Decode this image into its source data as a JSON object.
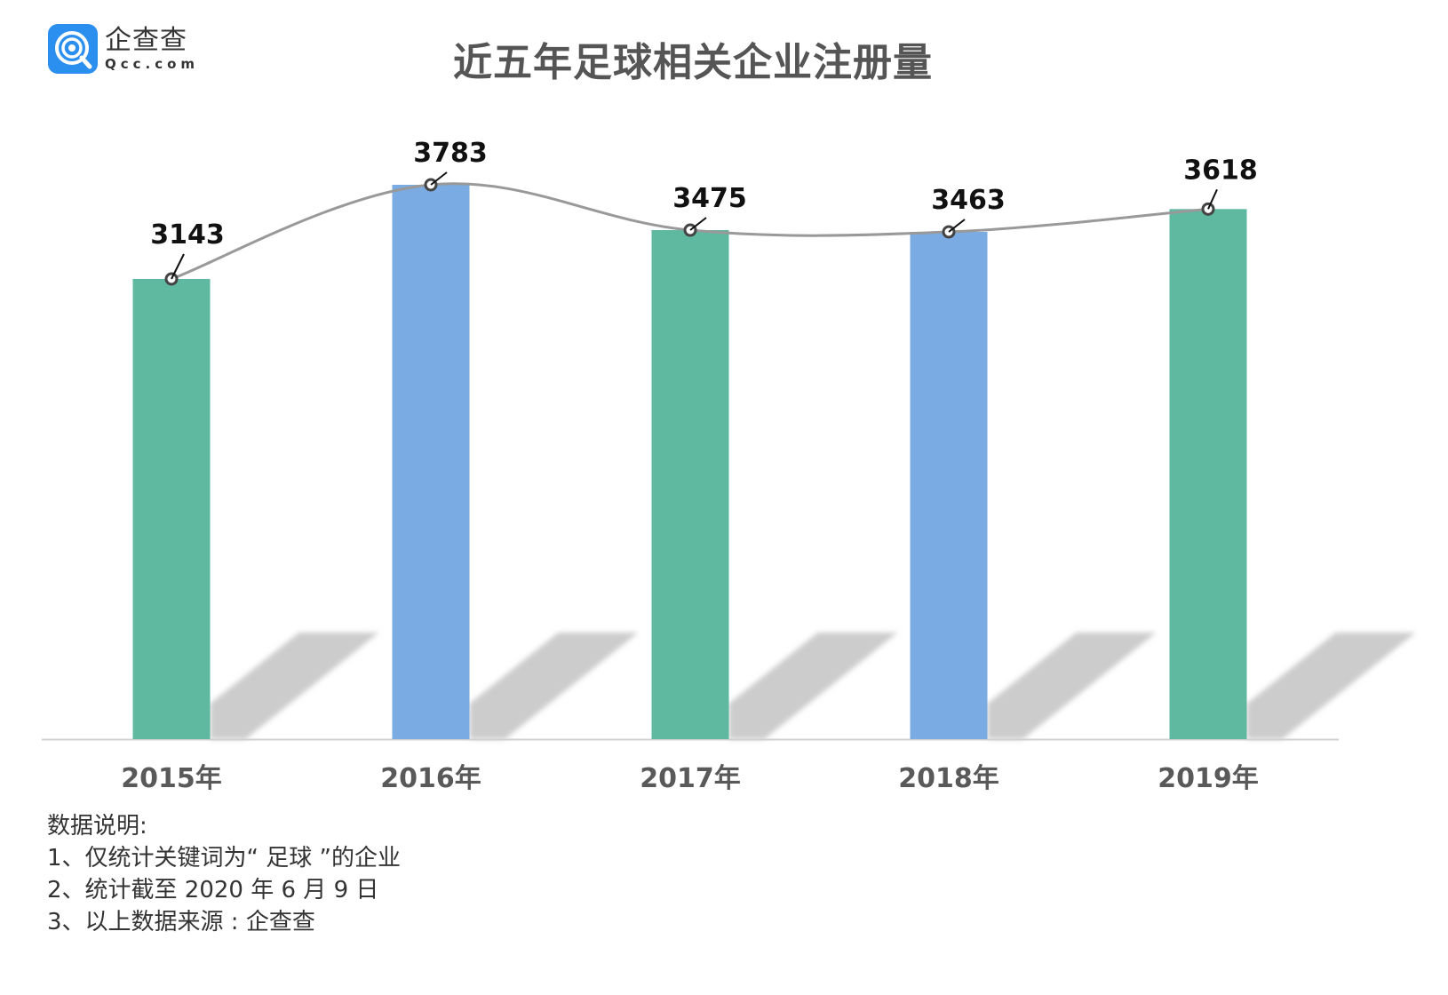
{
  "logo": {
    "cn": "企查查",
    "en": "Qcc.com"
  },
  "title": "近五年足球相关企业注册量",
  "chart_data": {
    "type": "bar",
    "title": "近五年足球相关企业注册量",
    "categories": [
      "2015年",
      "2016年",
      "2017年",
      "2018年",
      "2019年"
    ],
    "values": [
      3143,
      3783,
      3475,
      3463,
      3618
    ],
    "series": [
      {
        "name": "注册量",
        "type": "bar",
        "values": [
          3143,
          3783,
          3475,
          3463,
          3618
        ]
      },
      {
        "name": "趋势线",
        "type": "line",
        "smooth": true,
        "values": [
          3143,
          3783,
          3475,
          3463,
          3618
        ]
      }
    ],
    "bar_colors": [
      "#5fb8a0",
      "#7aabe2",
      "#5fb8a0",
      "#7aabe2",
      "#5fb8a0"
    ],
    "line_color": "#999999",
    "xlabel": "",
    "ylabel": "",
    "ylim": [
      0,
      3900
    ],
    "grid": false,
    "legend": "none",
    "data_labels": true
  },
  "notes": {
    "heading": "数据说明:",
    "items": [
      "1、仅统计关键词为“ 足球 ”的企业",
      "2、统计截至 2020 年 6 月 9 日",
      "3、以上数据来源 : 企查查"
    ]
  }
}
